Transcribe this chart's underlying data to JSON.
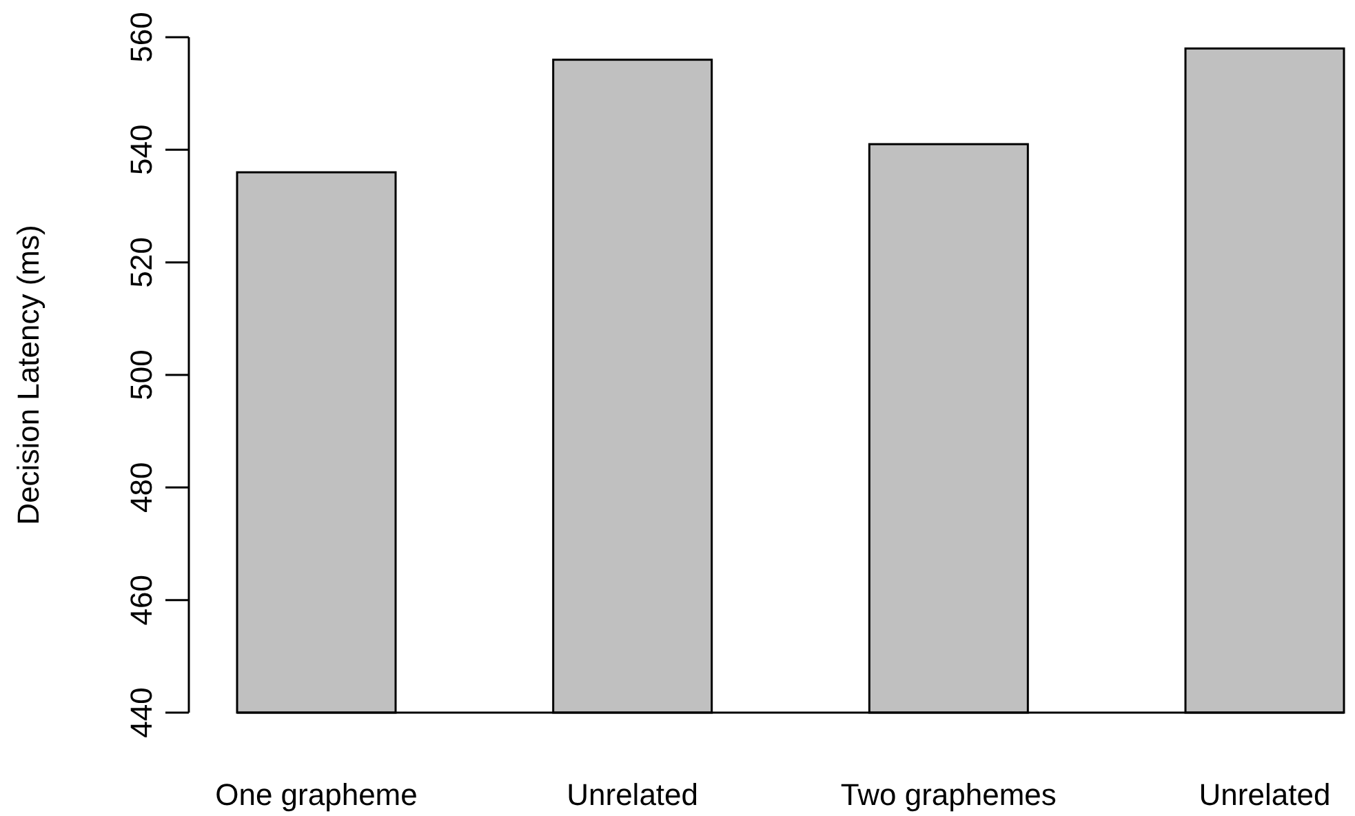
{
  "chart_data": {
    "type": "bar",
    "ylabel": "Decision Latency (ms)",
    "categories": [
      "One grapheme",
      "Unrelated",
      "Two graphemes",
      "Unrelated"
    ],
    "values": [
      536,
      556,
      541,
      558
    ],
    "color": "#c0c0c0",
    "ylim": [
      440,
      560
    ],
    "yticks": [
      440,
      460,
      480,
      500,
      520,
      540,
      560
    ],
    "grid": false
  }
}
